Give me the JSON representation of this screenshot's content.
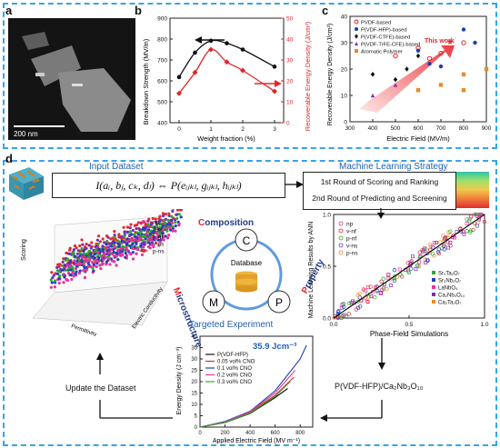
{
  "panel_labels": {
    "a": "a",
    "b": "b",
    "c": "c",
    "d": "d"
  },
  "panel_a": {
    "scale_bar_label": "200 nm"
  },
  "panel_b": {
    "xlabel": "Weight fraction (%)",
    "ylabel_left": "Breakdown Strength (MV/m)",
    "ylabel_right": "Recoverable Energy Density (J/cm³)",
    "x_ticks": [
      "0",
      "1",
      "2",
      "3"
    ],
    "y_left_ticks": [
      "400",
      "500",
      "600",
      "700",
      "800",
      "900"
    ],
    "y_right_ticks": [
      "0",
      "10",
      "20",
      "30",
      "40",
      "50"
    ]
  },
  "panel_c": {
    "xlabel": "Electric Field (MV/m)",
    "ylabel": "Recoverable Energy Density (J/cm³)",
    "x_ticks": [
      "300",
      "400",
      "500",
      "600",
      "700",
      "800",
      "900"
    ],
    "y_ticks": [
      "0",
      "10",
      "20",
      "30",
      "40"
    ],
    "legend": [
      "PVDF-based",
      "P(VDF-HFP)-based",
      "P(VDF-CTFE)-based",
      "P(VDF-TrFE-CFE)-based",
      "Aromatic Polymer"
    ],
    "annotation": "This work"
  },
  "panel_d": {
    "input_title": "Input Dataset",
    "equation": "I(aᵢ, bⱼ, cₖ, dₗ) ⇔ P(eᵢⱼₖₗ, gᵢⱼₖₗ, hᵢⱼₖₗ)",
    "ml_title": "Machine Learning Strategy",
    "step1": "1st Round of Scoring and Ranking",
    "step2": "2nd Round of Predicting and Screening",
    "cycle": {
      "top": "C",
      "left": "M",
      "right": "P",
      "center": "Database"
    },
    "composition": "Composition",
    "microstructure": "Microstructure",
    "property": "Property",
    "scatter3d": {
      "legend": [
        "np",
        "v-nf",
        "p-nf",
        "v-ns",
        "p-ns"
      ],
      "zlabel": "Scoring",
      "xlabel": "Permittivity",
      "ylabel": "Electric Conductivity"
    },
    "ann": {
      "ylabel": "Machine Learning Results by ANN",
      "xlabel": "Phase-Field Simulations",
      "ticks": [
        "0.0",
        "0.5",
        "1.0"
      ],
      "legend_left": [
        "np",
        "v-nf",
        "p-nf",
        "v-ns",
        "p-ns"
      ],
      "legend_right": [
        "Sr₂Ta₂O₇",
        "Sr₂Nb₂O₇",
        "LaNbO₄",
        "Ca₂Nb₃O₁₀",
        "Ca₂Ta₂O₇"
      ]
    },
    "experiment": {
      "title": "Targeted Experiment",
      "value": "35.9 Jcm⁻³",
      "ylabel": "Energy Density (J cm⁻³)",
      "xlabel": "Applied Electric Field (MV m⁻¹)",
      "x_ticks": [
        "0",
        "200",
        "400",
        "600",
        "800"
      ],
      "y_ticks": [
        "0",
        "5",
        "10",
        "15",
        "20",
        "25",
        "30",
        "35",
        "40"
      ],
      "legend": [
        "P(VDF-HFP)",
        "0.05 vol% CNO",
        "0.1 vol% CNO",
        "0.2 vol% CNO",
        "0.3 vol% CNO"
      ]
    },
    "update_label": "Update the Dataset",
    "material_label": "P(VDF-HFP)/Ca₂Nb₃O₁₀"
  },
  "chart_data": [
    {
      "type": "line",
      "xlabel": "Weight fraction (%)",
      "ylabel": "Breakdown Strength (MV/m)",
      "ylim": [
        400,
        900
      ],
      "series": [
        {
          "values_x": [
            0,
            0.5,
            1,
            1.5,
            2,
            3
          ],
          "values": [
            618,
            735,
            792,
            780,
            750,
            668
          ]
        }
      ]
    },
    {
      "type": "line",
      "xlabel": "Weight fraction (%)",
      "ylabel": "Recoverable Energy Density (J/cm³)",
      "ylim": [
        0,
        50
      ],
      "series": [
        {
          "values_x": [
            0,
            0.5,
            1,
            1.5,
            2,
            3
          ],
          "values": [
            14,
            24,
            35,
            29,
            25,
            15
          ]
        }
      ]
    },
    {
      "type": "scatter",
      "xlabel": "Electric Field (MV/m)",
      "ylabel": "Recoverable Energy Density (J/cm³)",
      "xlim": [
        300,
        900
      ],
      "ylim": [
        0,
        40
      ],
      "series": [
        {
          "name": "PVDF-based",
          "x": [
            500,
            600,
            650,
            700,
            800
          ],
          "y": [
            25,
            28,
            24,
            26,
            30
          ]
        },
        {
          "name": "P(VDF-HFP)-based",
          "x": [
            600,
            650,
            700,
            800,
            850
          ],
          "y": [
            27,
            22,
            21,
            35,
            30
          ]
        },
        {
          "name": "P(VDF-CTFE)-based",
          "x": [
            400,
            500,
            550,
            600
          ],
          "y": [
            18,
            16,
            20,
            25
          ]
        },
        {
          "name": "P(VDF-TrFE-CFE)-based",
          "x": [
            400,
            500
          ],
          "y": [
            10,
            14
          ]
        },
        {
          "name": "Aromatic Polymer",
          "x": [
            600,
            700,
            800,
            800,
            900
          ],
          "y": [
            12,
            14,
            12,
            18,
            20
          ]
        }
      ]
    },
    {
      "type": "line",
      "xlabel": "Applied Electric Field (MV m⁻¹)",
      "ylabel": "Energy Density (J cm⁻³)",
      "xlim": [
        0,
        900
      ],
      "ylim": [
        0,
        40
      ],
      "series": [
        {
          "name": "P(VDF-HFP)",
          "x": [
            0,
            200,
            400,
            600,
            700
          ],
          "y": [
            0,
            2,
            6,
            13,
            17
          ]
        },
        {
          "name": "0.05 vol% CNO",
          "x": [
            0,
            200,
            400,
            600,
            750
          ],
          "y": [
            0,
            2.2,
            6.5,
            14,
            22
          ]
        },
        {
          "name": "0.1 vol% CNO",
          "x": [
            0,
            200,
            400,
            600,
            800,
            850
          ],
          "y": [
            0,
            2.5,
            7,
            16,
            30,
            36
          ]
        },
        {
          "name": "0.2 vol% CNO",
          "x": [
            0,
            200,
            400,
            600,
            760
          ],
          "y": [
            0,
            2.3,
            6.8,
            15,
            25
          ]
        },
        {
          "name": "0.3 vol% CNO",
          "x": [
            0,
            200,
            400,
            600,
            720
          ],
          "y": [
            0,
            2.1,
            6.2,
            13.5,
            20
          ]
        }
      ]
    }
  ]
}
